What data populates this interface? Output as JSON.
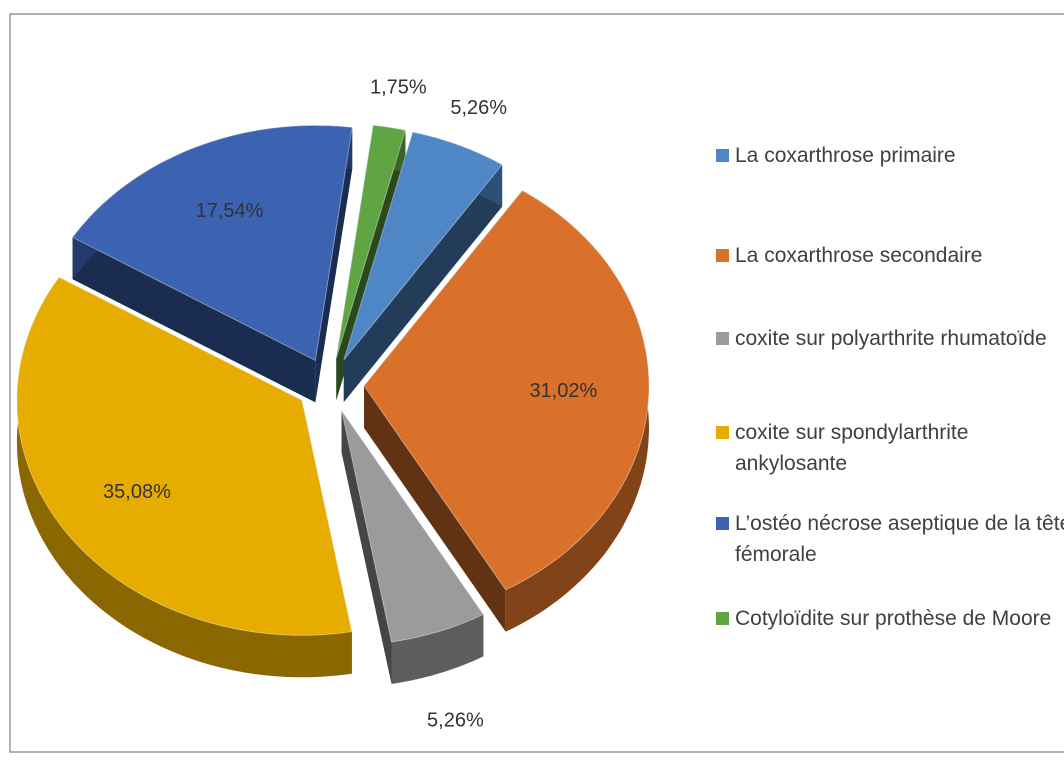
{
  "chart_data": {
    "type": "pie",
    "categories": [
      "La coxarthrose primaire",
      "La coxarthrose secondaire",
      "coxite sur polyarthrite rhumatoïde",
      "coxite sur spondylarthrite ankylosante",
      "L’ostéo nécrose aseptique de la tête fémorale",
      "Cotyloïdite sur prothèse de Moore"
    ],
    "values": [
      5.26,
      31.02,
      5.26,
      35.08,
      17.54,
      1.75
    ],
    "value_labels": [
      "5,26%",
      "31,02%",
      "5,26%",
      "35,08%",
      "17,54%",
      "1,75%"
    ],
    "colors": [
      "#4f86c6",
      "#d9712b",
      "#9b9b9b",
      "#e6ac00",
      "#3b63b1",
      "#5fa544"
    ],
    "legend": "right"
  }
}
